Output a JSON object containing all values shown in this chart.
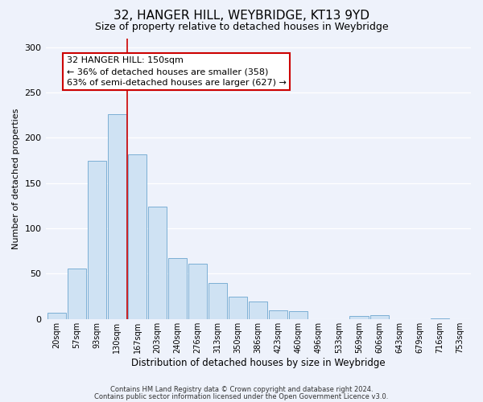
{
  "title": "32, HANGER HILL, WEYBRIDGE, KT13 9YD",
  "subtitle": "Size of property relative to detached houses in Weybridge",
  "xlabel": "Distribution of detached houses by size in Weybridge",
  "ylabel": "Number of detached properties",
  "bar_labels": [
    "20sqm",
    "57sqm",
    "93sqm",
    "130sqm",
    "167sqm",
    "203sqm",
    "240sqm",
    "276sqm",
    "313sqm",
    "350sqm",
    "386sqm",
    "423sqm",
    "460sqm",
    "496sqm",
    "533sqm",
    "569sqm",
    "606sqm",
    "643sqm",
    "679sqm",
    "716sqm",
    "753sqm"
  ],
  "bar_heights": [
    7,
    56,
    175,
    226,
    182,
    124,
    67,
    61,
    40,
    25,
    19,
    10,
    9,
    0,
    0,
    3,
    4,
    0,
    0,
    1,
    0
  ],
  "bar_color": "#cfe2f3",
  "bar_edge_color": "#7bafd4",
  "vline_color": "#cc0000",
  "annotation_box_text": "32 HANGER HILL: 150sqm\n← 36% of detached houses are smaller (358)\n63% of semi-detached houses are larger (627) →",
  "ylim": [
    0,
    310
  ],
  "footnote1": "Contains HM Land Registry data © Crown copyright and database right 2024.",
  "footnote2": "Contains public sector information licensed under the Open Government Licence v3.0.",
  "title_fontsize": 11,
  "subtitle_fontsize": 9,
  "annotation_fontsize": 8,
  "axis_label_fontsize": 8,
  "tick_fontsize": 7,
  "background_color": "#eef2fb"
}
